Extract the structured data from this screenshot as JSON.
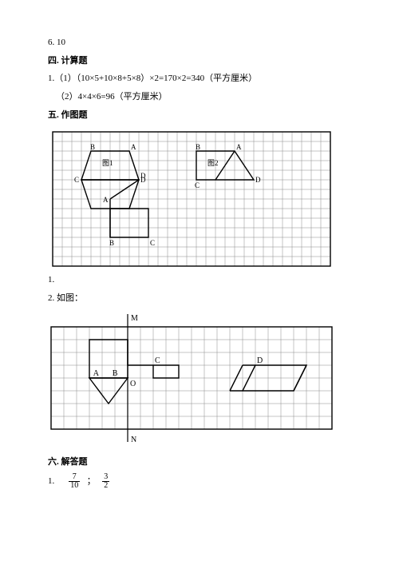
{
  "answers": {
    "line6_10": "6. 10"
  },
  "section4": {
    "heading": "四. 计算题",
    "q1_part1": "1.（1）（10×5+10×8+5×8）×2=170×2=340（平方厘米）",
    "q1_part2": "（2）4×4×6=96（平方厘米）"
  },
  "section5": {
    "heading": "五. 作图题",
    "q1_label": "1.",
    "q2_label": "2. 如图：",
    "figure1": {
      "grid": {
        "cols": 29,
        "rows": 14,
        "cell": 12,
        "stroke": "#8a8a8a",
        "border_stroke": "#000000"
      },
      "shapes_stroke": "#000000",
      "shapes_width": 1.4,
      "labels_font": 9,
      "fig_label_font": 9,
      "labels": {
        "B1": "B",
        "A1": "A",
        "tu1": "图1",
        "C1": "C",
        "D1": "D",
        "A2": "A",
        "B2": "B",
        "C2": "C",
        "D2": "D",
        "B3": "B",
        "A3": "A",
        "tu2": "图2",
        "C3": "C",
        "D3": "D"
      }
    },
    "figure2": {
      "grid": {
        "cols": 22,
        "rows": 8,
        "cell": 16,
        "stroke": "#8a8a8a",
        "border_stroke": "#000000"
      },
      "shapes_stroke": "#000000",
      "shapes_width": 1.4,
      "labels_font": 10,
      "labels": {
        "M": "M",
        "N": "N",
        "A": "A",
        "B": "B",
        "C": "C",
        "D": "D",
        "O": "O"
      }
    }
  },
  "section6": {
    "heading": "六. 解答题",
    "q1_label": "1.",
    "sep": "；",
    "frac1_num": "7",
    "frac1_den": "10",
    "frac2_num": "3",
    "frac2_den": "2"
  },
  "colors": {
    "text": "#000000",
    "grid": "#8a8a8a",
    "bg": "#ffffff"
  }
}
